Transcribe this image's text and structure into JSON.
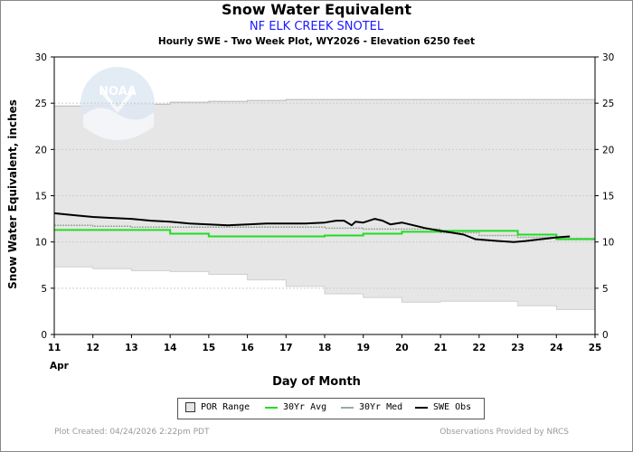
{
  "header": {
    "title": "Snow Water Equivalent",
    "subtitle": "NF ELK CREEK SNOTEL",
    "description": "Hourly SWE - Two Week Plot, WY2026 -  Elevation 6250 feet"
  },
  "footer": {
    "created": "Plot Created: 04/24/2026 2:22pm PDT",
    "credit": "Observations Provided by NRCS"
  },
  "logo": {
    "text": "NOAA"
  },
  "colors": {
    "por_fill": "#e6e6e6",
    "avg": "#22dd22",
    "med": "#9aaa9a",
    "obs": "#000000",
    "grid": "#cccccc",
    "logo": "#dfe8f4"
  },
  "chart_data": {
    "type": "line",
    "title": "Snow Water Equivalent",
    "xlabel": "Day of Month",
    "ylabel": "Snow Water Equivalent, inches",
    "month_label": "Apr",
    "xlim": [
      11,
      25
    ],
    "ylim": [
      0,
      30
    ],
    "x_ticks": [
      "11",
      "12",
      "13",
      "14",
      "15",
      "16",
      "17",
      "18",
      "19",
      "20",
      "21",
      "22",
      "23",
      "24",
      "25"
    ],
    "y_ticks": [
      "0",
      "5",
      "10",
      "15",
      "20",
      "25",
      "30"
    ],
    "grid": "horizontal",
    "legend": {
      "position": "bottom",
      "entries": [
        "POR Range",
        "30Yr Avg",
        "30Yr Med",
        "SWE Obs"
      ]
    },
    "series": [
      {
        "name": "POR Range max",
        "x": [
          11,
          12,
          13,
          14,
          15,
          16,
          17,
          25
        ],
        "values": [
          24.7,
          24.8,
          24.9,
          25.1,
          25.2,
          25.3,
          25.4,
          25.4
        ]
      },
      {
        "name": "POR Range min",
        "x": [
          11,
          12,
          13,
          14,
          15,
          16,
          17,
          18,
          19,
          20,
          21,
          22,
          23,
          24,
          25
        ],
        "values": [
          7.3,
          7.1,
          6.9,
          6.8,
          6.5,
          5.9,
          5.2,
          4.4,
          4.0,
          3.5,
          3.6,
          3.6,
          3.1,
          2.7,
          2.7
        ]
      },
      {
        "name": "30Yr Avg",
        "x": [
          11,
          14,
          15,
          18,
          19,
          20,
          21,
          22,
          23,
          24,
          25
        ],
        "values": [
          11.3,
          10.9,
          10.6,
          10.7,
          10.9,
          11.1,
          11.2,
          11.2,
          10.8,
          10.3,
          10.3
        ]
      },
      {
        "name": "30Yr Med",
        "x": [
          11,
          12,
          13,
          14,
          15,
          16,
          17,
          18,
          19,
          20,
          21,
          22,
          23,
          24,
          25
        ],
        "values": [
          11.8,
          11.7,
          11.6,
          11.6,
          11.6,
          11.6,
          11.6,
          11.5,
          11.4,
          11.4,
          11.0,
          10.7,
          10.5,
          10.4,
          10.4
        ]
      },
      {
        "name": "SWE Obs",
        "x": [
          11,
          11.5,
          12,
          12.5,
          13,
          13.5,
          14,
          14.5,
          15,
          15.5,
          16,
          16.5,
          17,
          17.5,
          18,
          18.3,
          18.5,
          18.7,
          18.8,
          19.0,
          19.3,
          19.5,
          19.7,
          20.0,
          20.3,
          20.6,
          21.0,
          21.3,
          21.6,
          21.9,
          22.2,
          22.5,
          22.9,
          23.2,
          23.6,
          24.0,
          24.35
        ],
        "values": [
          13.1,
          12.9,
          12.7,
          12.6,
          12.5,
          12.3,
          12.2,
          12.0,
          11.9,
          11.8,
          11.9,
          12.0,
          12.0,
          12.0,
          12.1,
          12.3,
          12.3,
          11.8,
          12.2,
          12.1,
          12.5,
          12.3,
          11.9,
          12.1,
          11.8,
          11.5,
          11.2,
          11.0,
          10.8,
          10.3,
          10.2,
          10.1,
          10.0,
          10.1,
          10.3,
          10.5,
          10.6
        ]
      }
    ]
  }
}
